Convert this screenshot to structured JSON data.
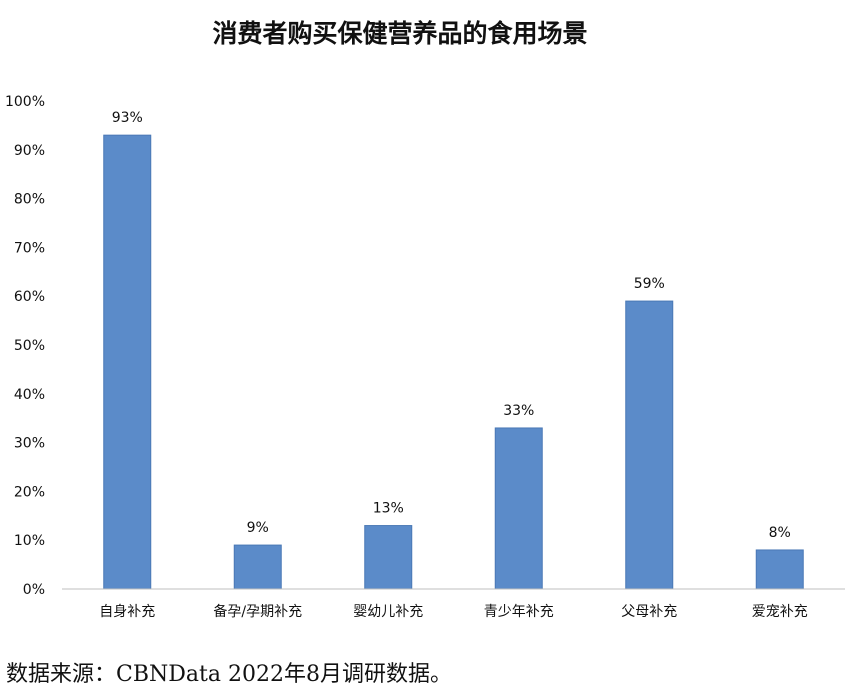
{
  "chart_data": {
    "type": "bar",
    "title": "消费者购买保健营养品的食用场景",
    "categories": [
      "自身补充",
      "备孕/孕期补充",
      "婴幼儿补充",
      "青少年补充",
      "父母补充",
      "爱宠补充"
    ],
    "values": [
      93,
      9,
      13,
      33,
      59,
      8
    ],
    "data_labels": [
      "93%",
      "9%",
      "13%",
      "33%",
      "59%",
      "8%"
    ],
    "ylim": [
      0,
      100
    ],
    "yticks": [
      0,
      10,
      20,
      30,
      40,
      50,
      60,
      70,
      80,
      90,
      100
    ],
    "ytick_labels": [
      "0%",
      "10%",
      "20%",
      "30%",
      "40%",
      "50%",
      "60%",
      "70%",
      "80%",
      "90%",
      "100%"
    ],
    "grid": false,
    "legend": "none",
    "bar_color": "#5b8bc9"
  },
  "source_note": "数据来源：CBNData 2022年8月调研数据。"
}
